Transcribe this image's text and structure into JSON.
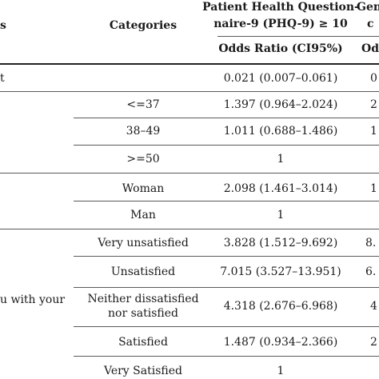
{
  "header": {
    "col1": "s",
    "col2": "Categories",
    "col3_line1": "Patient Health Question-",
    "col3_line2": "naire-9 (PHQ-9) ≥ 10",
    "col4_line1": "Gen",
    "col4_line2": "c",
    "sub_col3": "Odds Ratio (CI95%)",
    "sub_col4": "Od"
  },
  "rows": [
    {
      "col1": "t",
      "col2": "",
      "col3": "0.021 (0.007–0.061)",
      "col4": "0"
    },
    {
      "col1": "",
      "col2": "<=37",
      "col3": "1.397 (0.964–2.024)",
      "col4": "2"
    },
    {
      "col1": "",
      "col2": "38–49",
      "col3": "1.011 (0.688–1.486)",
      "col4": "1"
    },
    {
      "col1": "",
      "col2": ">=50",
      "col3": "1",
      "col4": ""
    },
    {
      "col1": "",
      "col2": "Woman",
      "col3": "2.098 (1.461–3.014)",
      "col4": "1"
    },
    {
      "col1": "",
      "col2": "Man",
      "col3": "1",
      "col4": ""
    },
    {
      "col1": "",
      "col2": "Very unsatisfied",
      "col3": "3.828 (1.512–9.692)",
      "col4": "8."
    },
    {
      "col1": "u with your",
      "col2": "Unsatisfied",
      "col3": "7.015 (3.527–13.951)",
      "col4": "6."
    },
    {
      "col1": "",
      "col2_line1": "Neither dissatisfied",
      "col2_line2": "nor satisfied",
      "col3": "4.318 (2.676–6.968)",
      "col4": "4"
    },
    {
      "col1": "",
      "col2": "Satisfied",
      "col3": "1.487 (0.934–2.366)",
      "col4": "2"
    },
    {
      "col1": "",
      "col2": "Very Satisfied",
      "col3": "1",
      "col4": ""
    }
  ]
}
